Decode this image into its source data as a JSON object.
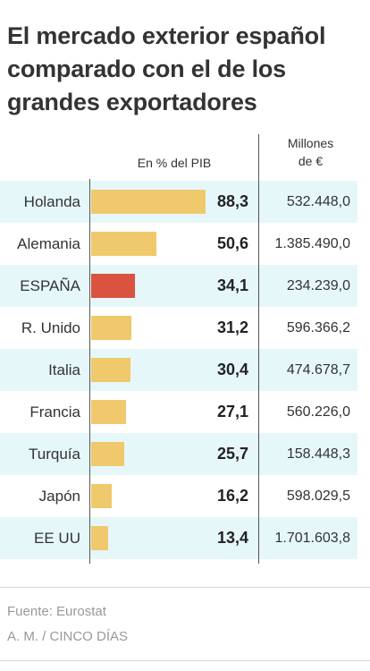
{
  "title": "El mercado exterior español comparado con el de los grandes exportadores",
  "headers": {
    "pct": "En % del PIB",
    "millones_line1": "Millones",
    "millones_line2": "de €"
  },
  "colors": {
    "bar": "#EFC96B",
    "highlight": "#D9533F",
    "band": "#E6F7FA"
  },
  "chart_data": {
    "type": "bar",
    "orientation": "horizontal",
    "categories": [
      "Holanda",
      "Alemania",
      "ESPAÑA",
      "R. Unido",
      "Italia",
      "Francia",
      "Turquía",
      "Japón",
      "EE UU"
    ],
    "values": [
      88.3,
      50.6,
      34.1,
      31.2,
      30.4,
      27.1,
      25.7,
      16.2,
      13.4
    ],
    "value_labels": [
      "88,3",
      "50,6",
      "34,1",
      "31,2",
      "30,4",
      "27,1",
      "25,7",
      "16,2",
      "13,4"
    ],
    "secondary_labels": [
      "532.448,0",
      "1.385.490,0",
      "234.239,0",
      "596.366,2",
      "474.678,7",
      "560.226,0",
      "158.448,3",
      "598.029,5",
      "1.701.603,8"
    ],
    "highlight_index": 2,
    "xlim": [
      0,
      88.3
    ]
  },
  "source": {
    "line1": "Fuente: Eurostat",
    "line2": "A. M. / CINCO DÍAS"
  }
}
